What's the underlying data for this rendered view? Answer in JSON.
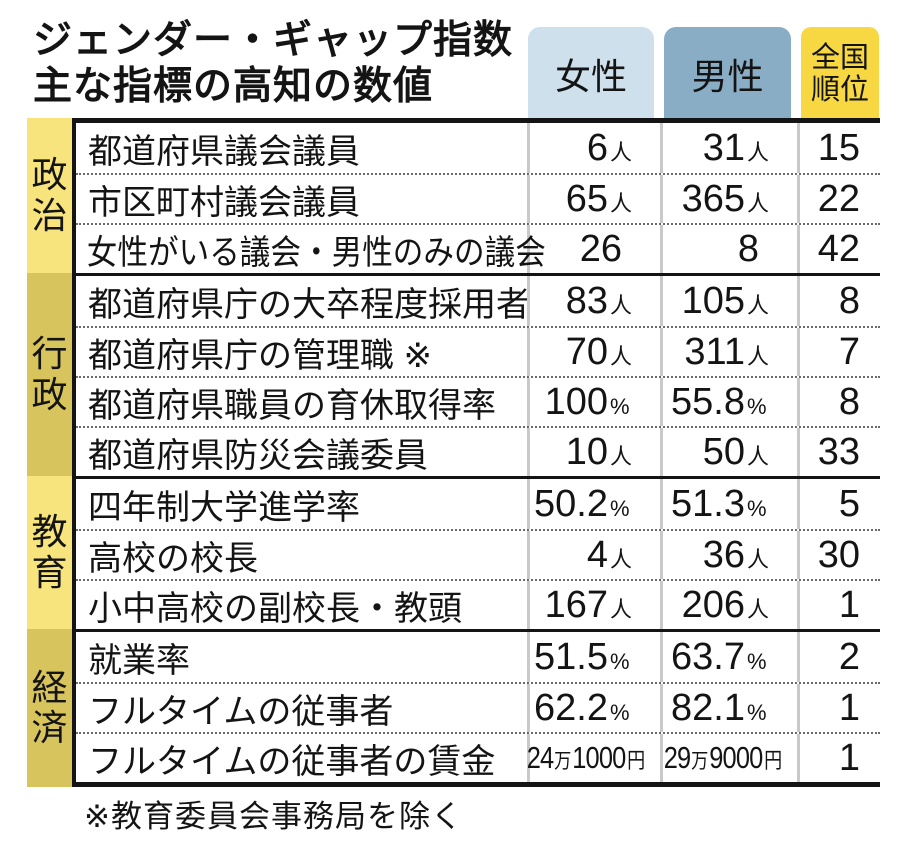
{
  "chart_data": {
    "type": "table",
    "title_line1": "ジェンダー・ギャップ指数",
    "title_line2": "主な指標の高知の数値",
    "columns": {
      "female": "女性",
      "male": "男性",
      "rank_line1": "全国",
      "rank_line2": "順位"
    },
    "sections": [
      {
        "category": "政治",
        "shade": "light",
        "rows": [
          {
            "label": "都道府県議会議員",
            "female": {
              "v": "6",
              "u": "人"
            },
            "male": {
              "v": "31",
              "u": "人"
            },
            "rank": "15"
          },
          {
            "label": "市区町村議会議員",
            "female": {
              "v": "65",
              "u": "人"
            },
            "male": {
              "v": "365",
              "u": "人"
            },
            "rank": "22"
          },
          {
            "label": "女性がいる議会・男性のみの議会",
            "female": {
              "v": "26",
              "u": ""
            },
            "male": {
              "v": "8",
              "u": ""
            },
            "rank": "42"
          }
        ]
      },
      {
        "category": "行政",
        "shade": "dark",
        "rows": [
          {
            "label": "都道府県庁の大卒程度採用者",
            "female": {
              "v": "83",
              "u": "人"
            },
            "male": {
              "v": "105",
              "u": "人"
            },
            "rank": "8"
          },
          {
            "label": "都道府県庁の管理職 ※",
            "female": {
              "v": "70",
              "u": "人"
            },
            "male": {
              "v": "311",
              "u": "人"
            },
            "rank": "7"
          },
          {
            "label": "都道府県職員の育休取得率",
            "female": {
              "v": "100",
              "u": "%"
            },
            "male": {
              "v": "55.8",
              "u": "%"
            },
            "rank": "8"
          },
          {
            "label": "都道府県防災会議委員",
            "female": {
              "v": "10",
              "u": "人"
            },
            "male": {
              "v": "50",
              "u": "人"
            },
            "rank": "33"
          }
        ]
      },
      {
        "category": "教育",
        "shade": "light",
        "rows": [
          {
            "label": "四年制大学進学率",
            "female": {
              "v": "50.2",
              "u": "%"
            },
            "male": {
              "v": "51.3",
              "u": "%"
            },
            "rank": "5"
          },
          {
            "label": "高校の校長",
            "female": {
              "v": "4",
              "u": "人"
            },
            "male": {
              "v": "36",
              "u": "人"
            },
            "rank": "30"
          },
          {
            "label": "小中高校の副校長・教頭",
            "female": {
              "v": "167",
              "u": "人"
            },
            "male": {
              "v": "206",
              "u": "人"
            },
            "rank": "1"
          }
        ]
      },
      {
        "category": "経済",
        "shade": "dark",
        "rows": [
          {
            "label": "就業率",
            "female": {
              "v": "51.5",
              "u": "%"
            },
            "male": {
              "v": "63.7",
              "u": "%"
            },
            "rank": "2"
          },
          {
            "label": "フルタイムの従事者",
            "female": {
              "v": "62.2",
              "u": "%"
            },
            "male": {
              "v": "82.1",
              "u": "%"
            },
            "rank": "1"
          },
          {
            "label": "フルタイムの従事者の賃金",
            "female": {
              "v": "24万1000",
              "u": "円"
            },
            "male": {
              "v": "29万9000",
              "u": "円"
            },
            "rank": "1"
          }
        ]
      }
    ],
    "footnote": "※教育委員会事務局を除く"
  },
  "colors": {
    "female_header": "#cde0eb",
    "male_header": "#88adc4",
    "rank_header": "#f7d843",
    "category_light": "#f8e47c",
    "category_dark": "#d8c45c",
    "line_black": "#141414",
    "grid_gray": "#c9c9c9"
  }
}
